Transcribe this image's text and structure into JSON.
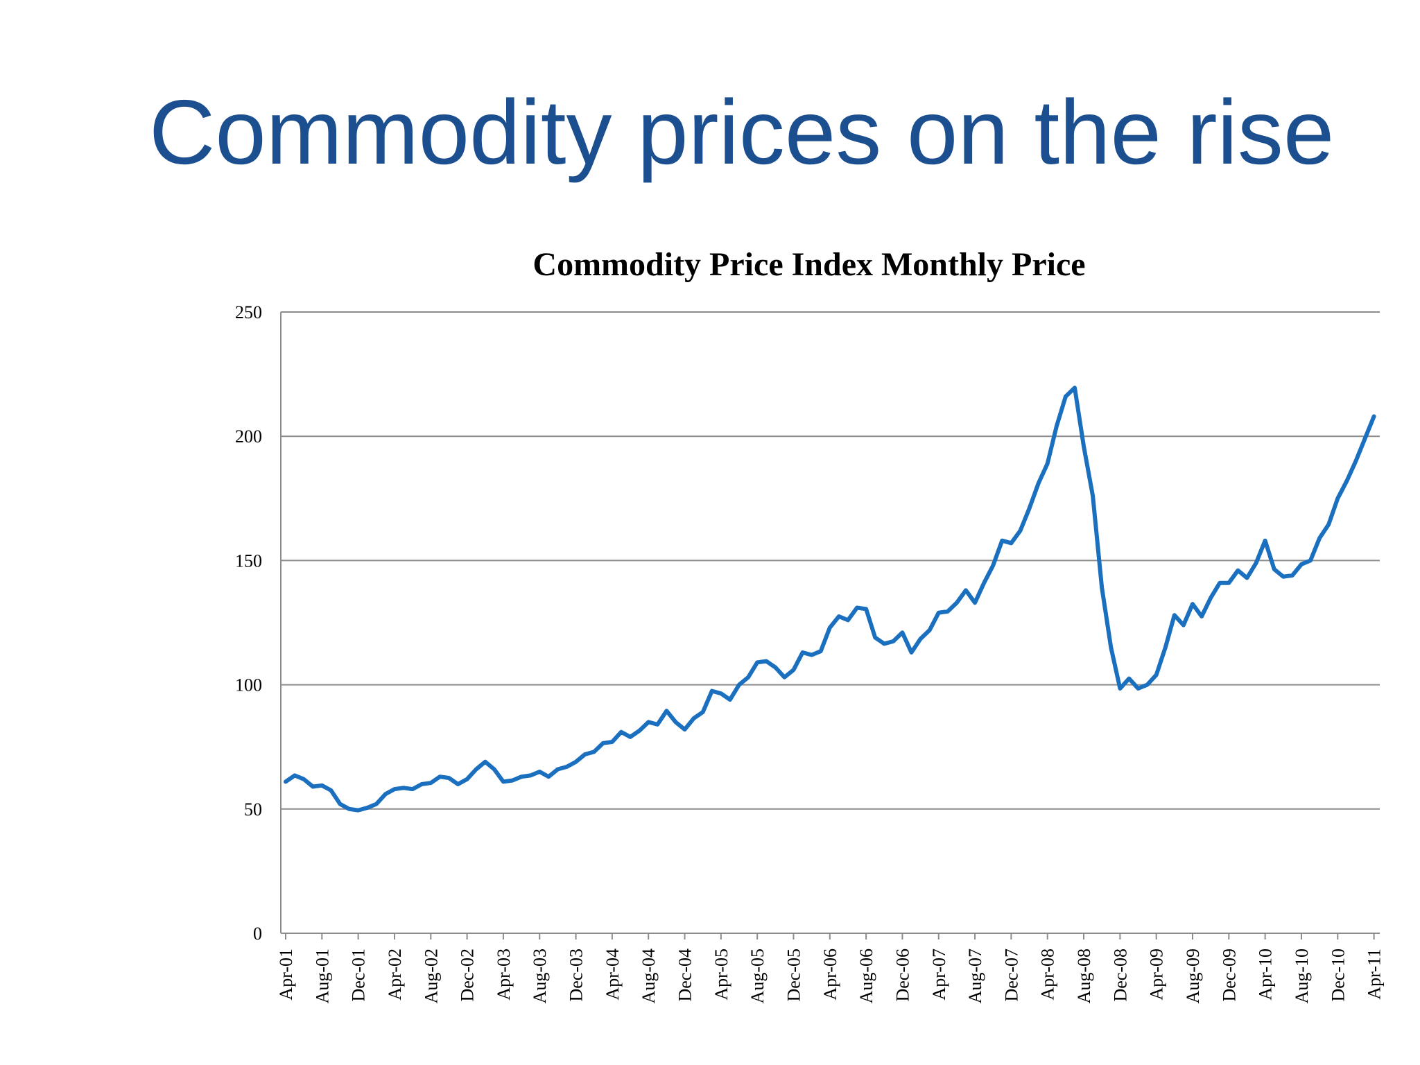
{
  "slide": {
    "title": "Commodity prices on the rise"
  },
  "colors": {
    "title": "#1c4f8f",
    "line": "#1a6fbf",
    "grid": "#8c8c8c",
    "axis": "#8c8c8c"
  },
  "chart_data": {
    "type": "line",
    "title": "Commodity Price Index Monthly Price",
    "xlabel": "",
    "ylabel": "",
    "ylim": [
      0,
      250
    ],
    "yticks": [
      0,
      50,
      100,
      150,
      200,
      250
    ],
    "ytick_labels": [
      "0",
      "50",
      "100",
      "150",
      "200",
      "250"
    ],
    "grid": true,
    "legend": "none",
    "x_tick_labels": [
      "Apr-01",
      "Aug-01",
      "Dec-01",
      "Apr-02",
      "Aug-02",
      "Dec-02",
      "Apr-03",
      "Aug-03",
      "Dec-03",
      "Apr-04",
      "Aug-04",
      "Dec-04",
      "Apr-05",
      "Aug-05",
      "Dec-05",
      "Apr-06",
      "Aug-06",
      "Dec-06",
      "Apr-07",
      "Aug-07",
      "Dec-07",
      "Apr-08",
      "Aug-08",
      "Dec-08",
      "Apr-09",
      "Aug-09",
      "Dec-09",
      "Apr-10",
      "Aug-10",
      "Dec-10",
      "Apr-11"
    ],
    "x_tick_step_months": 4,
    "series": [
      {
        "name": "Commodity Price Index",
        "start": "Apr-01",
        "values": [
          61,
          63.5,
          62,
          59,
          59.5,
          57.5,
          52,
          50,
          49.5,
          50.5,
          52,
          56,
          58,
          58.5,
          58,
          60,
          60.5,
          63,
          62.5,
          60,
          62,
          66,
          69,
          66,
          61,
          61.5,
          63,
          63.5,
          65,
          63,
          66,
          67,
          69,
          72,
          73,
          76.5,
          77,
          81,
          79,
          81.5,
          85,
          84,
          89.5,
          85,
          82,
          86.5,
          89,
          97.5,
          96.5,
          94,
          100,
          103,
          109,
          109.5,
          107,
          103,
          106,
          113,
          112,
          113.5,
          123,
          127.5,
          126,
          131,
          130.5,
          119,
          116.5,
          117.5,
          121,
          113,
          118.5,
          122,
          129,
          129.5,
          133,
          138,
          133,
          141,
          148,
          158,
          157,
          162,
          171,
          181,
          189,
          204,
          216,
          219.5,
          196,
          176,
          139,
          115,
          98.5,
          102.5,
          98.5,
          100,
          104,
          115,
          128,
          124,
          132.5,
          127.5,
          135,
          141,
          141,
          146,
          143,
          149,
          158,
          146.5,
          143.5,
          144,
          148.5,
          150,
          159,
          164.5,
          175,
          182,
          190,
          199,
          208
        ]
      }
    ]
  }
}
